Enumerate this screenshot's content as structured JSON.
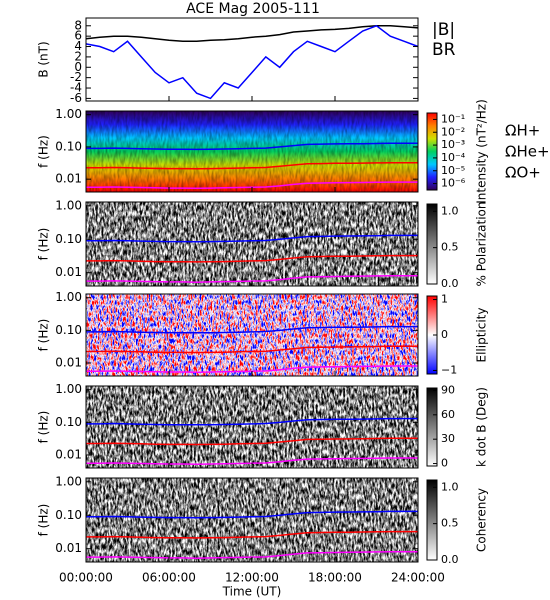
{
  "chart_data": [
    {
      "type": "line",
      "title": "ACE Mag 2005-111",
      "ylabel": "B (nT)",
      "xlabel": "Time (UT)",
      "x": [
        0,
        1,
        2,
        3,
        4,
        5,
        6,
        7,
        8,
        9,
        10,
        11,
        12,
        13,
        14,
        15,
        16,
        17,
        18,
        19,
        20,
        21,
        22,
        23,
        24
      ],
      "xlim": [
        0,
        24
      ],
      "xticks": [
        {
          "value": 0,
          "label": "00:00:00"
        },
        {
          "value": 6,
          "label": "06:00:00"
        },
        {
          "value": 12,
          "label": "12:00:00"
        },
        {
          "value": 18,
          "label": "18:00:00"
        },
        {
          "value": 24,
          "label": "24:00:00"
        }
      ],
      "ylim": [
        -6.5,
        9.5
      ],
      "yticks": [
        -6,
        -4,
        -2,
        0,
        2,
        4,
        6,
        8
      ],
      "series": [
        {
          "name": "|B|",
          "color": "#000000",
          "values": [
            5.5,
            5.8,
            6,
            6,
            5.8,
            5.5,
            5.2,
            5,
            5,
            5.2,
            5.3,
            5.5,
            5.8,
            6,
            6.3,
            6.8,
            7,
            7.2,
            7.3,
            7.5,
            7.8,
            8,
            8,
            7.8,
            7.6
          ]
        },
        {
          "name": "BR",
          "color": "#0000ff",
          "values": [
            4.5,
            4,
            3,
            5,
            2,
            -1,
            -3,
            -2,
            -5,
            -6,
            -3,
            -4,
            -1,
            2,
            0,
            3,
            5,
            4,
            3,
            5,
            7,
            8,
            6,
            5,
            4
          ]
        }
      ]
    },
    {
      "type": "spectrogram",
      "ylabel": "f (Hz)",
      "ylim": [
        0.004,
        1.3
      ],
      "log": true,
      "shading": "gradient",
      "yticks": [
        {
          "value": 0.01,
          "label": "0.01"
        },
        {
          "value": 0.1,
          "label": "0.10"
        },
        {
          "value": 1,
          "label": "1.00"
        }
      ],
      "colorbar": {
        "label": "Intensity (nT²/Hz)",
        "lim": [
          -6.5,
          -0.5
        ],
        "colors": [
          "#30005a",
          "#2020ff",
          "#00c8ff",
          "#00d060",
          "#d0e000",
          "#ff8000",
          "#ff0000"
        ],
        "ticks": [
          {
            "value": -6,
            "label": "10⁻⁶"
          },
          {
            "value": -5,
            "label": "10⁻⁵"
          },
          {
            "value": -4,
            "label": "10⁻⁴"
          },
          {
            "value": -3,
            "label": "10⁻³"
          },
          {
            "value": -2,
            "label": "10⁻²"
          },
          {
            "value": -1,
            "label": "10⁻¹"
          }
        ]
      },
      "series": [
        {
          "name": "ΩH+",
          "color": "#0000ff",
          "values": [
            0.09,
            0.09,
            0.092,
            0.09,
            0.088,
            0.086,
            0.085,
            0.085,
            0.084,
            0.085,
            0.086,
            0.088,
            0.09,
            0.092,
            0.1,
            0.11,
            0.12,
            0.122,
            0.124,
            0.125,
            0.126,
            0.128,
            0.13,
            0.13,
            0.13
          ]
        },
        {
          "name": "ΩHe+",
          "color": "#ff0000",
          "values": [
            0.0225,
            0.0225,
            0.023,
            0.0225,
            0.022,
            0.0215,
            0.0212,
            0.0212,
            0.021,
            0.0212,
            0.0215,
            0.022,
            0.0225,
            0.023,
            0.025,
            0.0275,
            0.03,
            0.0305,
            0.031,
            0.0312,
            0.0315,
            0.032,
            0.0325,
            0.0325,
            0.0325
          ]
        },
        {
          "name": "ΩO+",
          "color": "#ff00ff",
          "values": [
            0.0056,
            0.0056,
            0.0057,
            0.0056,
            0.0055,
            0.0054,
            0.0053,
            0.0053,
            0.0052,
            0.0053,
            0.0054,
            0.0055,
            0.0056,
            0.0057,
            0.0062,
            0.0069,
            0.0075,
            0.0076,
            0.0077,
            0.0078,
            0.0079,
            0.008,
            0.0081,
            0.0081,
            0.0081
          ]
        }
      ]
    },
    {
      "type": "spectrogram",
      "ylabel": "f (Hz)",
      "ylim": [
        0.004,
        1.3
      ],
      "log": true,
      "shading": "noise",
      "yticks": [
        {
          "value": 0.01,
          "label": "0.01"
        },
        {
          "value": 0.1,
          "label": "0.10"
        },
        {
          "value": 1,
          "label": "1.00"
        }
      ],
      "colorbar": {
        "label": "% Polarization",
        "lim": [
          0,
          1.1
        ],
        "colors": [
          "#ffffff",
          "#000000"
        ],
        "ticks": [
          {
            "value": 0,
            "label": "0.0"
          },
          {
            "value": 0.5,
            "label": "0.5"
          },
          {
            "value": 1,
            "label": "1.0"
          }
        ]
      }
    },
    {
      "type": "spectrogram",
      "ylabel": "f (Hz)",
      "ylim": [
        0.004,
        1.3
      ],
      "log": true,
      "shading": "noise",
      "yticks": [
        {
          "value": 0.01,
          "label": "0.01"
        },
        {
          "value": 0.1,
          "label": "0.10"
        },
        {
          "value": 1,
          "label": "1.00"
        }
      ],
      "colorbar": {
        "label": "Ellipticity",
        "lim": [
          -1.1,
          1.1
        ],
        "colors": [
          "#0000ff",
          "#ffffff",
          "#ff0000"
        ],
        "ticks": [
          {
            "value": -1,
            "label": "−1"
          },
          0,
          1
        ]
      }
    },
    {
      "type": "spectrogram",
      "ylabel": "f (Hz)",
      "ylim": [
        0.004,
        1.3
      ],
      "log": true,
      "shading": "noise",
      "yticks": [
        {
          "value": 0.01,
          "label": "0.01"
        },
        {
          "value": 0.1,
          "label": "0.10"
        },
        {
          "value": 1,
          "label": "1.00"
        }
      ],
      "colorbar": {
        "label": "k dot B (Deg)",
        "lim": [
          -3,
          93
        ],
        "colors": [
          "#ffffff",
          "#000000"
        ],
        "ticks": [
          0,
          30,
          60,
          90
        ]
      }
    },
    {
      "type": "spectrogram",
      "ylabel": "f (Hz)",
      "ylim": [
        0.004,
        1.3
      ],
      "log": true,
      "shading": "noise",
      "yticks": [
        {
          "value": 0.01,
          "label": "0.01"
        },
        {
          "value": 0.1,
          "label": "0.10"
        },
        {
          "value": 1,
          "label": "1.00"
        }
      ],
      "colorbar": {
        "label": "Coherency",
        "lim": [
          0,
          1.1
        ],
        "colors": [
          "#ffffff",
          "#000000"
        ],
        "ticks": [
          {
            "value": 0,
            "label": "0.0"
          },
          {
            "value": 0.5,
            "label": "0.5"
          },
          {
            "value": 1,
            "label": "1.0"
          }
        ]
      }
    }
  ]
}
